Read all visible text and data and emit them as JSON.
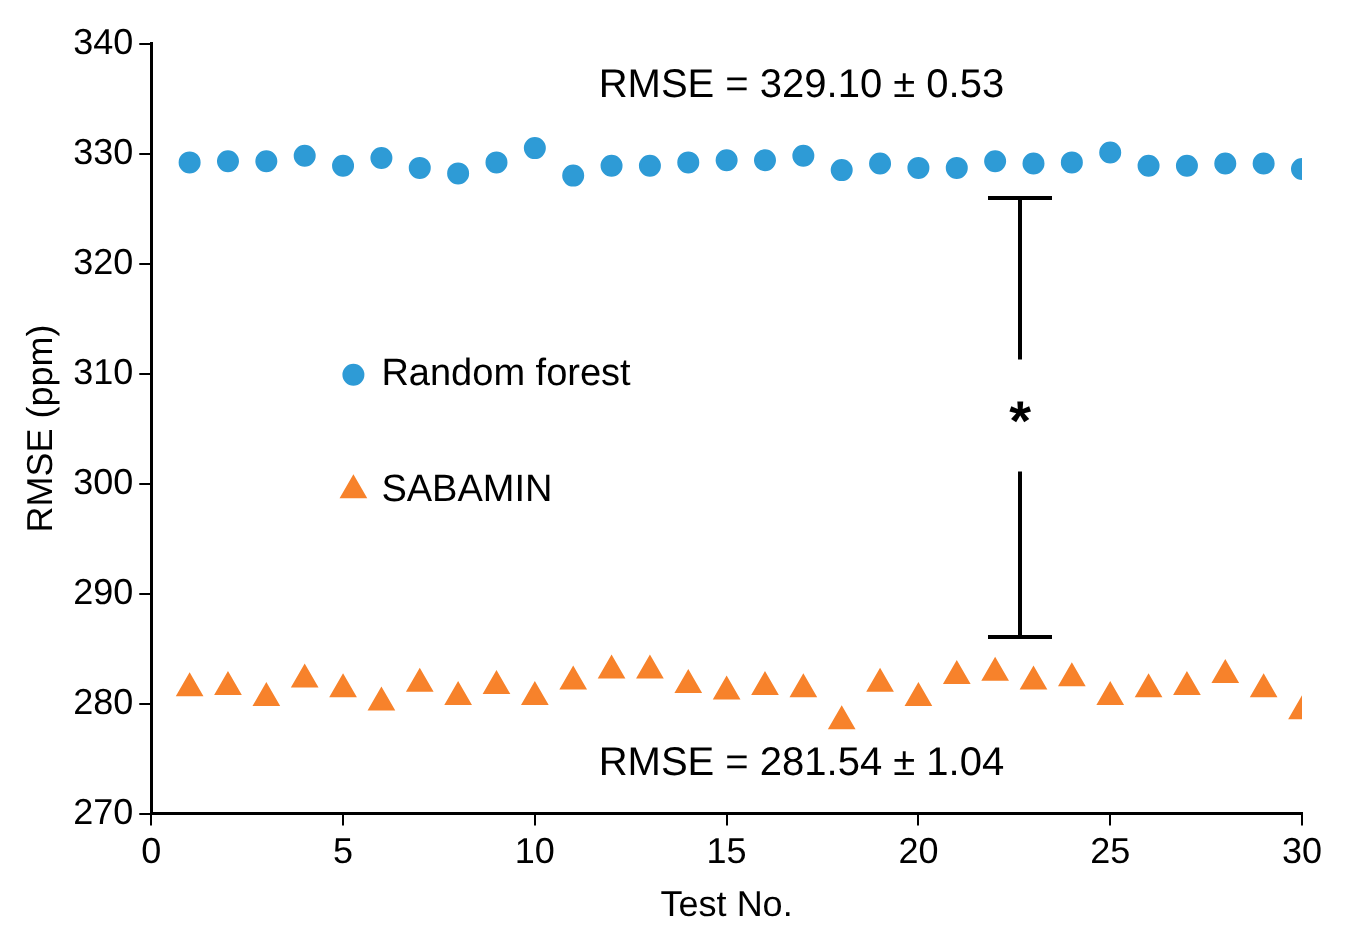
{
  "chart_data": {
    "type": "scatter",
    "xlabel": "Test No.",
    "ylabel": "RMSE (ppm)",
    "x": [
      1,
      2,
      3,
      4,
      5,
      6,
      7,
      8,
      9,
      10,
      11,
      12,
      13,
      14,
      15,
      16,
      17,
      18,
      19,
      20,
      21,
      22,
      23,
      24,
      25,
      26,
      27,
      28,
      29,
      30
    ],
    "series": [
      {
        "name": "Random forest",
        "color": "#2e9bd6",
        "marker": "circle",
        "values": [
          329.2,
          329.3,
          329.3,
          329.8,
          328.9,
          329.6,
          328.7,
          328.2,
          329.2,
          330.5,
          328.0,
          328.9,
          328.9,
          329.2,
          329.4,
          329.4,
          329.8,
          328.5,
          329.1,
          328.7,
          328.7,
          329.3,
          329.1,
          329.2,
          330.1,
          328.9,
          328.9,
          329.1,
          329.1,
          328.6
        ]
      },
      {
        "name": "SABAMIN",
        "color": "#f7822b",
        "marker": "triangle",
        "values": [
          281.4,
          281.5,
          280.5,
          282.2,
          281.3,
          280.1,
          281.8,
          280.6,
          281.6,
          280.6,
          282.0,
          283.0,
          283.0,
          281.7,
          281.1,
          281.5,
          281.3,
          278.4,
          281.8,
          280.5,
          282.5,
          282.8,
          282.0,
          282.3,
          280.6,
          281.3,
          281.5,
          282.6,
          281.3,
          279.3
        ]
      }
    ],
    "xlim": [
      0,
      30
    ],
    "xticks": [
      0,
      5,
      10,
      15,
      20,
      25,
      30
    ],
    "ylim": [
      270,
      340
    ],
    "yticks": [
      270,
      280,
      290,
      300,
      310,
      320,
      330,
      340
    ],
    "grid": false,
    "legend": "left",
    "annotations": [
      "RMSE = 329.10 ± 0.53",
      "RMSE = 281.54 ± 1.04",
      "*"
    ]
  }
}
